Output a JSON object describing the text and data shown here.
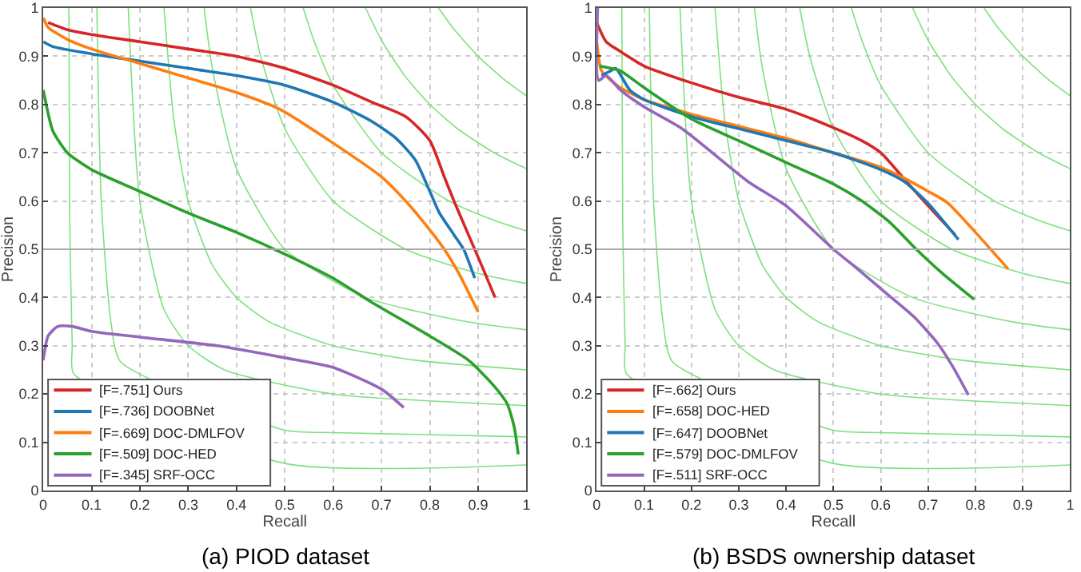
{
  "chart_data": [
    {
      "type": "line",
      "xlabel": "Recall",
      "ylabel": "Precision",
      "xlim": [
        0,
        1
      ],
      "ylim": [
        0,
        1
      ],
      "xticks": [
        0,
        0.1,
        0.2,
        0.3,
        0.4,
        0.5,
        0.6,
        0.7,
        0.8,
        0.9,
        1
      ],
      "yticks": [
        0,
        0.1,
        0.2,
        0.3,
        0.4,
        0.5,
        0.6,
        0.7,
        0.8,
        0.9,
        1
      ],
      "grid": true,
      "legend": "bottom left",
      "annotations": [
        "(a) PIOD dataset"
      ],
      "ref_lines": [
        {
          "axis": "y",
          "value": 0.5,
          "color": "#aaaaaa"
        }
      ],
      "series": [
        {
          "color": "#7fe07f",
          "x": [
            0.053,
            0.055,
            0.06,
            0.063,
            0.5,
            1
          ],
          "values": [
            1,
            0.55,
            0.3,
            0.242,
            0.056,
            0.053
          ]
        },
        {
          "color": "#7fe07f",
          "x": [
            0.111,
            0.12,
            0.14,
            0.16,
            0.5,
            0.6,
            1
          ],
          "values": [
            1,
            0.6,
            0.35,
            0.267,
            0.125,
            0.12,
            0.111
          ]
        },
        {
          "color": "#7fe07f",
          "x": [
            0.176,
            0.2,
            0.25,
            0.3,
            0.375,
            0.6,
            1
          ],
          "values": [
            1,
            0.6,
            0.375,
            0.3,
            0.25,
            0.2,
            0.176
          ]
        },
        {
          "color": "#7fe07f",
          "x": [
            0.25,
            0.27,
            0.3,
            0.35,
            0.4,
            0.467,
            0.6,
            0.771,
            1
          ],
          "values": [
            1,
            0.771,
            0.6,
            0.467,
            0.4,
            0.35,
            0.3,
            0.27,
            0.25
          ]
        },
        {
          "color": "#7fe07f",
          "x": [
            0.333,
            0.35,
            0.4,
            0.5,
            0.667,
            0.875,
            1
          ],
          "values": [
            1,
            0.875,
            0.667,
            0.5,
            0.4,
            0.35,
            0.333
          ]
        },
        {
          "color": "#7fe07f",
          "x": [
            0.429,
            0.45,
            0.5,
            0.6,
            0.75,
            0.9,
            1
          ],
          "values": [
            1,
            0.9,
            0.75,
            0.6,
            0.5,
            0.45,
            0.429
          ]
        },
        {
          "color": "#7fe07f",
          "x": [
            0.538,
            0.56,
            0.6,
            0.7,
            0.84,
            0.933,
            1
          ],
          "values": [
            1,
            0.933,
            0.84,
            0.7,
            0.6,
            0.56,
            0.538
          ]
        },
        {
          "color": "#7fe07f",
          "x": [
            0.667,
            0.7,
            0.75,
            0.8,
            0.857,
            0.933,
            1
          ],
          "values": [
            1,
            0.933,
            0.857,
            0.8,
            0.75,
            0.7,
            0.667
          ]
        },
        {
          "color": "#7fe07f",
          "x": [
            0.818,
            0.85,
            0.9,
            0.956,
            1
          ],
          "values": [
            1,
            0.956,
            0.9,
            0.85,
            0.818
          ]
        },
        {
          "name": "[F=.751] Ours",
          "color": "#d62728",
          "x": [
            0.01,
            0.05,
            0.1,
            0.2,
            0.3,
            0.4,
            0.5,
            0.6,
            0.68,
            0.75,
            0.8,
            0.83,
            0.85,
            0.88,
            0.91,
            0.935
          ],
          "values": [
            0.97,
            0.955,
            0.945,
            0.93,
            0.915,
            0.9,
            0.875,
            0.84,
            0.805,
            0.775,
            0.725,
            0.65,
            0.6,
            0.53,
            0.46,
            0.4
          ]
        },
        {
          "name": "[F=.736] DOOBNet",
          "color": "#1f77b4",
          "x": [
            0,
            0.02,
            0.1,
            0.2,
            0.3,
            0.4,
            0.5,
            0.6,
            0.68,
            0.73,
            0.77,
            0.8,
            0.82,
            0.85,
            0.87,
            0.893
          ],
          "values": [
            0.93,
            0.92,
            0.905,
            0.89,
            0.875,
            0.86,
            0.84,
            0.805,
            0.765,
            0.73,
            0.685,
            0.62,
            0.575,
            0.53,
            0.5,
            0.44
          ]
        },
        {
          "name": "[F=.669] DOC-DMLFOV",
          "color": "#ff7f0e",
          "x": [
            0,
            0.01,
            0.05,
            0.1,
            0.2,
            0.3,
            0.4,
            0.49,
            0.6,
            0.7,
            0.75,
            0.8,
            0.83,
            0.86,
            0.9
          ],
          "values": [
            0.98,
            0.96,
            0.935,
            0.915,
            0.885,
            0.855,
            0.825,
            0.79,
            0.72,
            0.65,
            0.6,
            0.54,
            0.5,
            0.45,
            0.37
          ]
        },
        {
          "name": "[F=.509] DOC-HED",
          "color": "#2ca02c",
          "x": [
            0,
            0.02,
            0.05,
            0.1,
            0.2,
            0.3,
            0.4,
            0.5,
            0.6,
            0.68,
            0.8,
            0.88,
            0.93,
            0.96,
            0.975,
            0.983
          ],
          "values": [
            0.83,
            0.745,
            0.7,
            0.665,
            0.62,
            0.575,
            0.535,
            0.49,
            0.44,
            0.39,
            0.32,
            0.27,
            0.22,
            0.18,
            0.13,
            0.075
          ]
        },
        {
          "name": "[F=.345] SRF-OCC",
          "color": "#9467bd",
          "x": [
            0,
            0.01,
            0.03,
            0.06,
            0.1,
            0.2,
            0.36,
            0.5,
            0.6,
            0.7,
            0.746
          ],
          "values": [
            0.27,
            0.32,
            0.34,
            0.34,
            0.33,
            0.318,
            0.3,
            0.275,
            0.255,
            0.21,
            0.172
          ]
        }
      ]
    },
    {
      "type": "line",
      "xlabel": "Recall",
      "ylabel": "Precision",
      "xlim": [
        0,
        1
      ],
      "ylim": [
        0,
        1
      ],
      "xticks": [
        0,
        0.1,
        0.2,
        0.3,
        0.4,
        0.5,
        0.6,
        0.7,
        0.8,
        0.9,
        1
      ],
      "yticks": [
        0,
        0.1,
        0.2,
        0.3,
        0.4,
        0.5,
        0.6,
        0.7,
        0.8,
        0.9,
        1
      ],
      "grid": true,
      "legend": "bottom left",
      "annotations": [
        "(b) BSDS ownership dataset"
      ],
      "ref_lines": [
        {
          "axis": "y",
          "value": 0.5,
          "color": "#aaaaaa"
        }
      ],
      "series": [
        {
          "color": "#7fe07f",
          "x": [
            0.053,
            0.055,
            0.06,
            0.063,
            0.5,
            1
          ],
          "values": [
            1,
            0.55,
            0.3,
            0.242,
            0.056,
            0.053
          ]
        },
        {
          "color": "#7fe07f",
          "x": [
            0.111,
            0.12,
            0.14,
            0.16,
            0.5,
            0.6,
            1
          ],
          "values": [
            1,
            0.6,
            0.35,
            0.267,
            0.125,
            0.12,
            0.111
          ]
        },
        {
          "color": "#7fe07f",
          "x": [
            0.176,
            0.2,
            0.25,
            0.3,
            0.375,
            0.6,
            1
          ],
          "values": [
            1,
            0.6,
            0.375,
            0.3,
            0.25,
            0.2,
            0.176
          ]
        },
        {
          "color": "#7fe07f",
          "x": [
            0.25,
            0.27,
            0.3,
            0.35,
            0.4,
            0.467,
            0.6,
            0.771,
            1
          ],
          "values": [
            1,
            0.771,
            0.6,
            0.467,
            0.4,
            0.35,
            0.3,
            0.27,
            0.25
          ]
        },
        {
          "color": "#7fe07f",
          "x": [
            0.333,
            0.35,
            0.4,
            0.5,
            0.667,
            0.875,
            1
          ],
          "values": [
            1,
            0.875,
            0.667,
            0.5,
            0.4,
            0.35,
            0.333
          ]
        },
        {
          "color": "#7fe07f",
          "x": [
            0.429,
            0.45,
            0.5,
            0.6,
            0.75,
            0.9,
            1
          ],
          "values": [
            1,
            0.9,
            0.75,
            0.6,
            0.5,
            0.45,
            0.429
          ]
        },
        {
          "color": "#7fe07f",
          "x": [
            0.538,
            0.56,
            0.6,
            0.7,
            0.84,
            0.933,
            1
          ],
          "values": [
            1,
            0.933,
            0.84,
            0.7,
            0.6,
            0.56,
            0.538
          ]
        },
        {
          "color": "#7fe07f",
          "x": [
            0.667,
            0.7,
            0.75,
            0.8,
            0.857,
            0.933,
            1
          ],
          "values": [
            1,
            0.933,
            0.857,
            0.8,
            0.75,
            0.7,
            0.667
          ]
        },
        {
          "color": "#7fe07f",
          "x": [
            0.818,
            0.85,
            0.9,
            0.956,
            1
          ],
          "values": [
            1,
            0.956,
            0.9,
            0.85,
            0.818
          ]
        },
        {
          "name": "[F=.662] Ours",
          "color": "#d62728",
          "x": [
            0,
            0.02,
            0.05,
            0.1,
            0.2,
            0.3,
            0.4,
            0.5,
            0.56,
            0.6,
            0.65,
            0.7,
            0.757
          ],
          "values": [
            0.97,
            0.93,
            0.91,
            0.88,
            0.845,
            0.815,
            0.79,
            0.752,
            0.725,
            0.7,
            0.645,
            0.59,
            0.53
          ]
        },
        {
          "name": "[F=.658] DOC-HED",
          "color": "#ff7f0e",
          "x": [
            0,
            0.01,
            0.03,
            0.05,
            0.1,
            0.2,
            0.3,
            0.4,
            0.5,
            0.6,
            0.65,
            0.7,
            0.74,
            0.8,
            0.869
          ],
          "values": [
            0.93,
            0.87,
            0.85,
            0.835,
            0.81,
            0.78,
            0.755,
            0.73,
            0.7,
            0.67,
            0.647,
            0.62,
            0.597,
            0.535,
            0.459
          ]
        },
        {
          "name": "[F=.647] DOOBNet",
          "color": "#1f77b4",
          "x": [
            0.01,
            0.03,
            0.04,
            0.07,
            0.1,
            0.2,
            0.3,
            0.4,
            0.5,
            0.6,
            0.65,
            0.7,
            0.764
          ],
          "values": [
            0.86,
            0.87,
            0.875,
            0.83,
            0.81,
            0.775,
            0.75,
            0.725,
            0.7,
            0.665,
            0.64,
            0.595,
            0.52
          ]
        },
        {
          "name": "[F=.579] DOC-DMLFOV",
          "color": "#2ca02c",
          "x": [
            0.005,
            0.03,
            0.05,
            0.1,
            0.2,
            0.3,
            0.4,
            0.5,
            0.56,
            0.62,
            0.675,
            0.73,
            0.797
          ],
          "values": [
            0.88,
            0.875,
            0.87,
            0.835,
            0.77,
            0.725,
            0.68,
            0.635,
            0.6,
            0.555,
            0.5,
            0.45,
            0.396
          ]
        },
        {
          "name": "[F=.511] SRF-OCC",
          "color": "#9467bd",
          "x": [
            0.002,
            0.004,
            0.02,
            0.05,
            0.1,
            0.18,
            0.32,
            0.4,
            0.5,
            0.55,
            0.61,
            0.67,
            0.72,
            0.75,
            0.785
          ],
          "values": [
            1,
            0.85,
            0.86,
            0.83,
            0.795,
            0.75,
            0.64,
            0.59,
            0.5,
            0.46,
            0.41,
            0.36,
            0.305,
            0.26,
            0.198
          ]
        }
      ]
    }
  ]
}
